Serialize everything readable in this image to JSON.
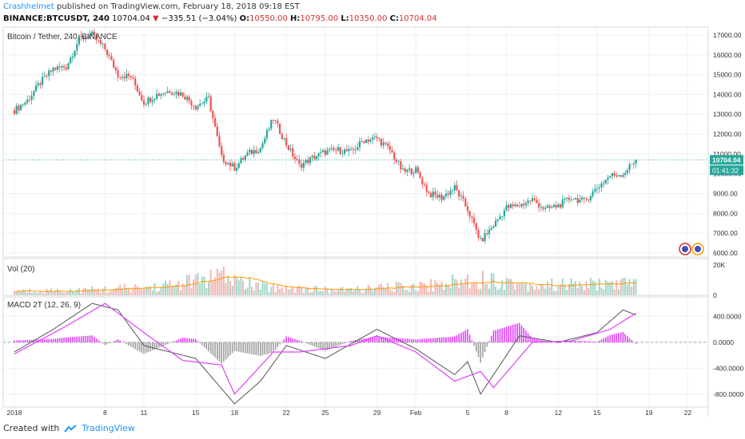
{
  "header": {
    "author": "Crashhelmet",
    "published": "published on TradingView.com, February 18, 2018 09:18 EST",
    "symbol": "BINANCE:BTCUSDT, 240",
    "last": "10704.04",
    "change": "−335.51 (−3.04%)",
    "o_label": "O:",
    "o_value": "10550.00",
    "h_label": "H:",
    "h_value": "10795.00",
    "l_label": "L:",
    "l_value": "10350.00",
    "c_label": "C:",
    "c_value": "10704.04"
  },
  "footer": {
    "created_with": "Created with",
    "brand": "TradingView"
  },
  "colors": {
    "up": "#26a69a",
    "down": "#ef5350",
    "vol_ma": "#ff9800",
    "macd": "#555555",
    "signal": "#e040fb",
    "hist_pos": "#e040fb",
    "hist_neg": "#9e9e9e",
    "grid": "#eef0f3",
    "price_line": "#26a69a"
  },
  "chart_data": [
    {
      "type": "candlestick",
      "title": "Bitcoin / Tether, 240, BINANCE",
      "x_ticks": [
        "2018",
        "8",
        "11",
        "15",
        "18",
        "22",
        "25",
        "29",
        "Feb",
        "5",
        "8",
        "12",
        "15",
        "19",
        "22"
      ],
      "ylim": [
        5800,
        17400
      ],
      "y_ticks": [
        "17000.00",
        "16000.00",
        "15000.00",
        "14000.00",
        "13000.00",
        "12000.00",
        "11000.00",
        "10000.00",
        "9000.00",
        "8000.00",
        "7000.00",
        "6000.00"
      ],
      "last_price_label": "10704.04",
      "countdown_label": "01:41:32",
      "close_anchors": [
        {
          "date": "2018-01-01",
          "close": 13200
        },
        {
          "date": "2018-01-02",
          "close": 13700
        },
        {
          "date": "2018-01-03",
          "close": 14600
        },
        {
          "date": "2018-01-04",
          "close": 15300
        },
        {
          "date": "2018-01-05",
          "close": 15400
        },
        {
          "date": "2018-01-06",
          "close": 16800
        },
        {
          "date": "2018-01-07",
          "close": 17000
        },
        {
          "date": "2018-01-08",
          "close": 16300
        },
        {
          "date": "2018-01-09",
          "close": 15000
        },
        {
          "date": "2018-01-10",
          "close": 14900
        },
        {
          "date": "2018-01-11",
          "close": 13600
        },
        {
          "date": "2018-01-12",
          "close": 14000
        },
        {
          "date": "2018-01-13",
          "close": 14200
        },
        {
          "date": "2018-01-14",
          "close": 14000
        },
        {
          "date": "2018-01-15",
          "close": 13400
        },
        {
          "date": "2018-01-16",
          "close": 13800
        },
        {
          "date": "2018-01-17",
          "close": 10800
        },
        {
          "date": "2018-01-18",
          "close": 10300
        },
        {
          "date": "2018-01-19",
          "close": 11000
        },
        {
          "date": "2018-01-20",
          "close": 11300
        },
        {
          "date": "2018-01-21",
          "close": 12800
        },
        {
          "date": "2018-01-22",
          "close": 11500
        },
        {
          "date": "2018-01-23",
          "close": 10400
        },
        {
          "date": "2018-01-24",
          "close": 10800
        },
        {
          "date": "2018-01-25",
          "close": 11100
        },
        {
          "date": "2018-01-26",
          "close": 11200
        },
        {
          "date": "2018-01-27",
          "close": 11100
        },
        {
          "date": "2018-01-28",
          "close": 11700
        },
        {
          "date": "2018-01-29",
          "close": 11800
        },
        {
          "date": "2018-01-30",
          "close": 11200
        },
        {
          "date": "2018-01-31",
          "close": 10100
        },
        {
          "date": "2018-02-01",
          "close": 10200
        },
        {
          "date": "2018-02-02",
          "close": 9000
        },
        {
          "date": "2018-02-03",
          "close": 8800
        },
        {
          "date": "2018-02-04",
          "close": 9300
        },
        {
          "date": "2018-02-05",
          "close": 8200
        },
        {
          "date": "2018-02-06",
          "close": 6600
        },
        {
          "date": "2018-02-07",
          "close": 7400
        },
        {
          "date": "2018-02-08",
          "close": 8300
        },
        {
          "date": "2018-02-09",
          "close": 8400
        },
        {
          "date": "2018-02-10",
          "close": 8700
        },
        {
          "date": "2018-02-11",
          "close": 8200
        },
        {
          "date": "2018-02-12",
          "close": 8400
        },
        {
          "date": "2018-02-13",
          "close": 8800
        },
        {
          "date": "2018-02-14",
          "close": 8600
        },
        {
          "date": "2018-02-15",
          "close": 9300
        },
        {
          "date": "2018-02-16",
          "close": 9900
        },
        {
          "date": "2018-02-17",
          "close": 10000
        },
        {
          "date": "2018-02-18",
          "close": 10704.04
        }
      ]
    },
    {
      "type": "bar",
      "title": "Vol (20)",
      "y_ticks": [
        "20K",
        "0"
      ],
      "ylim": [
        0,
        22000
      ],
      "volume_anchors": [
        {
          "date": "2018-01-01",
          "volume": 2500
        },
        {
          "date": "2018-01-06",
          "volume": 3000
        },
        {
          "date": "2018-01-12",
          "volume": 5000
        },
        {
          "date": "2018-01-17",
          "volume": 11000
        },
        {
          "date": "2018-01-20",
          "volume": 5000
        },
        {
          "date": "2018-01-26",
          "volume": 3000
        },
        {
          "date": "2018-02-02",
          "volume": 6000
        },
        {
          "date": "2018-02-06",
          "volume": 10000
        },
        {
          "date": "2018-02-10",
          "volume": 6000
        },
        {
          "date": "2018-02-18",
          "volume": 7000
        }
      ]
    },
    {
      "type": "line",
      "title": "MACD 2T (12, 26, 9)",
      "y_ticks": [
        "400.0000",
        "0.0000",
        "-400.0000",
        "-800.0000"
      ],
      "ylim": [
        -1000,
        700
      ],
      "macd_anchors": [
        {
          "date": "2018-01-01",
          "value": -150
        },
        {
          "date": "2018-01-04",
          "value": 200
        },
        {
          "date": "2018-01-07",
          "value": 600
        },
        {
          "date": "2018-01-09",
          "value": 500
        },
        {
          "date": "2018-01-11",
          "value": -50
        },
        {
          "date": "2018-01-15",
          "value": -250
        },
        {
          "date": "2018-01-18",
          "value": -950
        },
        {
          "date": "2018-01-20",
          "value": -600
        },
        {
          "date": "2018-01-22",
          "value": -50
        },
        {
          "date": "2018-01-25",
          "value": -250
        },
        {
          "date": "2018-01-29",
          "value": 200
        },
        {
          "date": "2018-02-01",
          "value": -100
        },
        {
          "date": "2018-02-04",
          "value": -500
        },
        {
          "date": "2018-02-05",
          "value": -300
        },
        {
          "date": "2018-02-06",
          "value": -800
        },
        {
          "date": "2018-02-09",
          "value": 100
        },
        {
          "date": "2018-02-12",
          "value": 0
        },
        {
          "date": "2018-02-15",
          "value": 150
        },
        {
          "date": "2018-02-17",
          "value": 500
        },
        {
          "date": "2018-02-18",
          "value": 420
        }
      ],
      "signal_anchors": [
        {
          "date": "2018-01-01",
          "value": -180
        },
        {
          "date": "2018-01-05",
          "value": 250
        },
        {
          "date": "2018-01-08",
          "value": 600
        },
        {
          "date": "2018-01-11",
          "value": 150
        },
        {
          "date": "2018-01-14",
          "value": -280
        },
        {
          "date": "2018-01-17",
          "value": -350
        },
        {
          "date": "2018-01-18",
          "value": -800
        },
        {
          "date": "2018-01-21",
          "value": -150
        },
        {
          "date": "2018-01-23",
          "value": -150
        },
        {
          "date": "2018-01-27",
          "value": -50
        },
        {
          "date": "2018-01-29",
          "value": 100
        },
        {
          "date": "2018-02-01",
          "value": -150
        },
        {
          "date": "2018-02-04",
          "value": -600
        },
        {
          "date": "2018-02-06",
          "value": -450
        },
        {
          "date": "2018-02-07",
          "value": -700
        },
        {
          "date": "2018-02-10",
          "value": 0
        },
        {
          "date": "2018-02-13",
          "value": 20
        },
        {
          "date": "2018-02-16",
          "value": 200
        },
        {
          "date": "2018-02-18",
          "value": 450
        }
      ]
    }
  ]
}
